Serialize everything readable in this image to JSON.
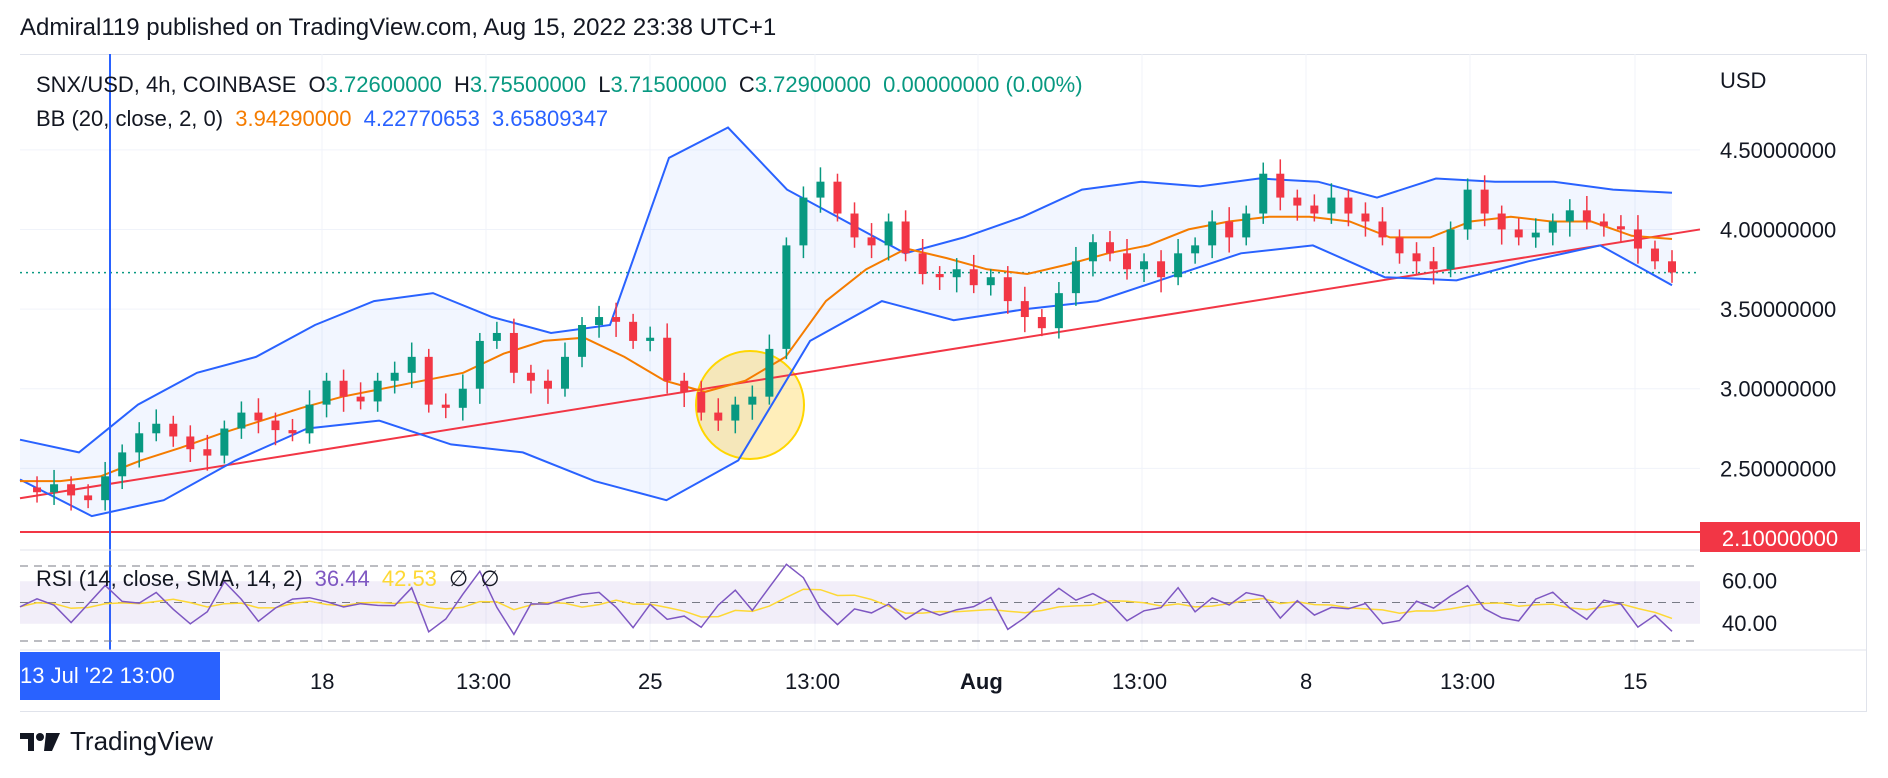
{
  "header": {
    "published": "Admiral119 published on TradingView.com, Aug 15, 2022 23:38 UTC+1"
  },
  "legend": {
    "symbol": "SNX/USD, 4h, COINBASE",
    "open_label": "O",
    "open": "3.72600000",
    "high_label": "H",
    "high": "3.75500000",
    "low_label": "L",
    "low": "3.71500000",
    "close_label": "C",
    "close": "3.72900000",
    "change": "0.00000000 (0.00%)",
    "bb_label": "BB (20, close, 2, 0)",
    "bb_basis": "3.94290000",
    "bb_upper": "4.22770653",
    "bb_lower": "3.65809347",
    "rsi_label": "RSI (14, close, SMA, 14, 2)",
    "rsi_value": "36.44",
    "rsi_ma": "42.53",
    "rsi_na1": "∅",
    "rsi_na2": "∅"
  },
  "price_axis": {
    "currency": "USD",
    "ticks": [
      "4.50000000",
      "4.00000000",
      "3.50000000",
      "3.00000000",
      "2.50000000"
    ],
    "support_badge": "2.10000000"
  },
  "rsi_axis": {
    "ticks": [
      "60.00",
      "40.00"
    ]
  },
  "time_axis": {
    "crosshair": "13 Jul '22   13:00",
    "ticks": [
      "18",
      "13:00",
      "25",
      "13:00",
      "Aug",
      "13:00",
      "8",
      "13:00",
      "15"
    ]
  },
  "brand": {
    "name": "TradingView"
  },
  "colors": {
    "up": "#089981",
    "down": "#f23645",
    "bb_basis": "#f57c00",
    "bb_band": "#2962ff",
    "trendline": "#f23645",
    "rsi": "#7e57c2",
    "rsi_ma": "#fdd835",
    "crosshair": "#2962ff"
  },
  "chart_data": {
    "type": "candlestick",
    "symbol": "SNX/USD",
    "timeframe": "4h",
    "exchange": "COINBASE",
    "y_range": [
      2.05,
      4.75
    ],
    "x_labels": [
      "18",
      "13:00",
      "25",
      "13:00",
      "Aug",
      "13:00",
      "8",
      "13:00",
      "15"
    ],
    "close_series": [
      2.38,
      2.35,
      2.4,
      2.33,
      2.3,
      2.45,
      2.6,
      2.72,
      2.78,
      2.7,
      2.62,
      2.58,
      2.75,
      2.85,
      2.8,
      2.74,
      2.72,
      2.9,
      3.05,
      2.95,
      2.92,
      3.05,
      3.1,
      3.2,
      2.9,
      2.88,
      3.0,
      3.3,
      3.35,
      3.1,
      3.05,
      3.0,
      3.2,
      3.4,
      3.45,
      3.42,
      3.3,
      3.32,
      3.05,
      2.98,
      2.85,
      2.8,
      2.9,
      2.95,
      3.25,
      3.9,
      4.2,
      4.3,
      4.1,
      3.95,
      3.9,
      4.05,
      3.85,
      3.72,
      3.7,
      3.75,
      3.65,
      3.7,
      3.55,
      3.45,
      3.38,
      3.6,
      3.8,
      3.92,
      3.85,
      3.75,
      3.8,
      3.7,
      3.85,
      3.9,
      4.05,
      3.95,
      4.1,
      4.35,
      4.2,
      4.15,
      4.1,
      4.2,
      4.1,
      4.05,
      3.95,
      3.85,
      3.8,
      3.75,
      4.0,
      4.25,
      4.1,
      4.0,
      3.95,
      3.98,
      4.05,
      4.12,
      4.05,
      4.02,
      4.0,
      3.88,
      3.8,
      3.73
    ],
    "bb_basis": [
      2.42,
      2.42,
      2.45,
      2.55,
      2.63,
      2.72,
      2.8,
      2.88,
      2.95,
      3.0,
      3.05,
      3.1,
      3.22,
      3.3,
      3.32,
      3.2,
      3.05,
      2.98,
      3.05,
      3.2,
      3.55,
      3.75,
      3.88,
      3.82,
      3.75,
      3.72,
      3.78,
      3.85,
      3.9,
      4.0,
      4.05,
      4.08,
      4.08,
      4.05,
      3.95,
      3.95,
      4.05,
      4.08,
      4.05,
      4.05,
      3.96,
      3.94
    ],
    "bb_upper": [
      2.68,
      2.6,
      2.9,
      3.1,
      3.2,
      3.4,
      3.55,
      3.6,
      3.45,
      3.35,
      3.4,
      4.45,
      4.64,
      4.25,
      4.05,
      3.85,
      3.95,
      4.08,
      4.25,
      4.3,
      4.27,
      4.32,
      4.3,
      4.2,
      4.32,
      4.3,
      4.3,
      4.25,
      4.23
    ],
    "bb_lower": [
      2.43,
      2.2,
      2.3,
      2.55,
      2.75,
      2.8,
      2.65,
      2.6,
      2.42,
      2.3,
      2.55,
      3.3,
      3.55,
      3.43,
      3.5,
      3.55,
      3.7,
      3.85,
      3.9,
      3.7,
      3.68,
      3.8,
      3.9,
      3.65
    ],
    "trendline": {
      "start": 2.35,
      "end": 4.0
    },
    "support_level": 2.1,
    "rsi": {
      "range": [
        30,
        70
      ],
      "upper_band": 60,
      "lower_band": 40,
      "last": 36.44,
      "ma_last": 42.53
    }
  }
}
